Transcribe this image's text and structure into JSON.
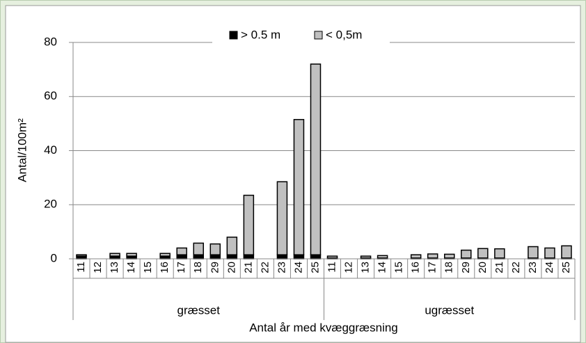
{
  "chart_data": {
    "type": "stacked_bar",
    "ylabel": "Antal/100m²",
    "xlabel": "Antal år med kvæggræsning",
    "groups": [
      "græsset",
      "ugræsset"
    ],
    "categories": [
      "11",
      "12",
      "13",
      "14",
      "15",
      "16",
      "17",
      "18",
      "29",
      "20",
      "21",
      "22",
      "23",
      "24",
      "25",
      "11",
      "12",
      "13",
      "14",
      "15",
      "16",
      "17",
      "18",
      "29",
      "20",
      "21",
      "22",
      "23",
      "24",
      "25"
    ],
    "series": [
      {
        "name": "> 0.5 m",
        "color": "#000000",
        "values": [
          1,
          0,
          1,
          1,
          0,
          1,
          1.5,
          1.5,
          1.5,
          1.5,
          1.5,
          0,
          1.5,
          1.5,
          1.5,
          0.3,
          0,
          0.3,
          0.3,
          0,
          0.3,
          0.3,
          0.3,
          0.3,
          0.3,
          0.3,
          0,
          0.3,
          0.3,
          0.3
        ]
      },
      {
        "name": "< 0,5m",
        "color": "#c0c0c0",
        "values": [
          0.5,
          0,
          1,
          1,
          0,
          1,
          2.5,
          4.3,
          4,
          6.5,
          22,
          0,
          27,
          50,
          70.5,
          0.7,
          0,
          0.7,
          0.9,
          0,
          1.2,
          1.5,
          1.4,
          2.9,
          3.5,
          3.4,
          0,
          4.2,
          3.7,
          4.5
        ]
      }
    ],
    "ylim": [
      0,
      80
    ],
    "yticks": [
      0,
      20,
      40,
      60,
      80
    ],
    "grid": true,
    "legend": "top"
  }
}
